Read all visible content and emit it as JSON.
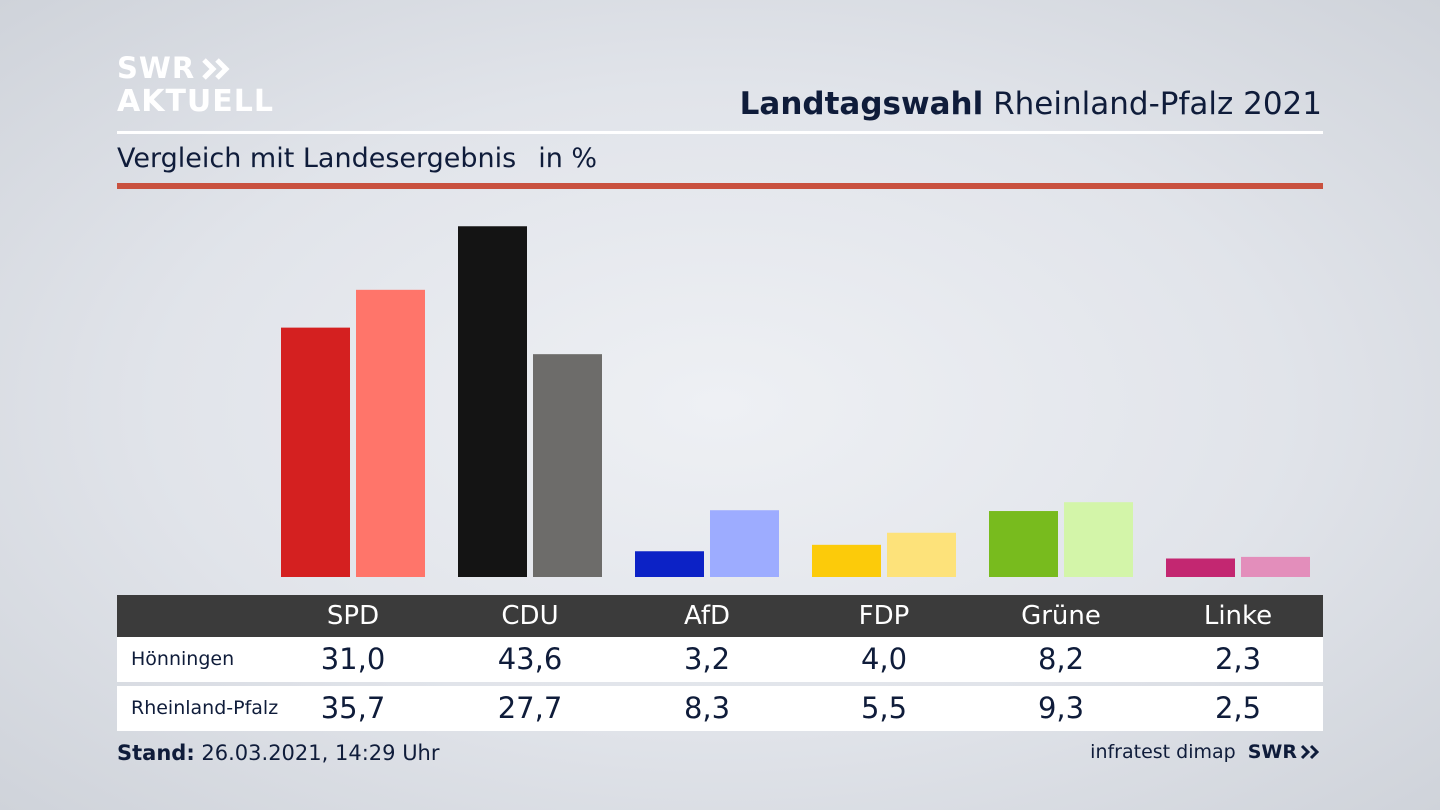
{
  "brand": {
    "line1": "SWR",
    "line2": "AKTUELL"
  },
  "header": {
    "title_bold": "Landtagswahl",
    "title_rest": "Rheinland-Pfalz 2021"
  },
  "subheader": {
    "text": "Vergleich mit Landesergebnis",
    "unit": "in %"
  },
  "chart_data": {
    "type": "bar",
    "title": "Landtagswahl Rheinland-Pfalz 2021",
    "subtitle": "Vergleich mit Landesergebnis in %",
    "categories": [
      "SPD",
      "CDU",
      "AfD",
      "FDP",
      "Grüne",
      "Linke"
    ],
    "series": [
      {
        "name": "Hönningen",
        "values": [
          31.0,
          43.6,
          3.2,
          4.0,
          8.2,
          2.3
        ],
        "colors": [
          "#d42020",
          "#141414",
          "#0c22c6",
          "#fccb0a",
          "#78bb1e",
          "#c32771"
        ]
      },
      {
        "name": "Rheinland-Pfalz",
        "values": [
          35.7,
          27.7,
          8.3,
          5.5,
          9.3,
          2.5
        ],
        "colors": [
          "#ff756a",
          "#6d6c6a",
          "#9dacff",
          "#fde27a",
          "#d3f5a9",
          "#e38ebb"
        ]
      }
    ],
    "ylim": [
      0,
      45
    ],
    "grid": false
  },
  "table": {
    "rows": [
      {
        "label": "Hönningen",
        "values": [
          "31,0",
          "43,6",
          "3,2",
          "4,0",
          "8,2",
          "2,3"
        ]
      },
      {
        "label": "Rheinland-Pfalz",
        "values": [
          "35,7",
          "27,7",
          "8,3",
          "5,5",
          "9,3",
          "2,5"
        ]
      }
    ]
  },
  "footer": {
    "stand_label": "Stand:",
    "stand_value": "26.03.2021, 14:29 Uhr",
    "source": "infratest dimap",
    "source_brand": "SWR"
  }
}
